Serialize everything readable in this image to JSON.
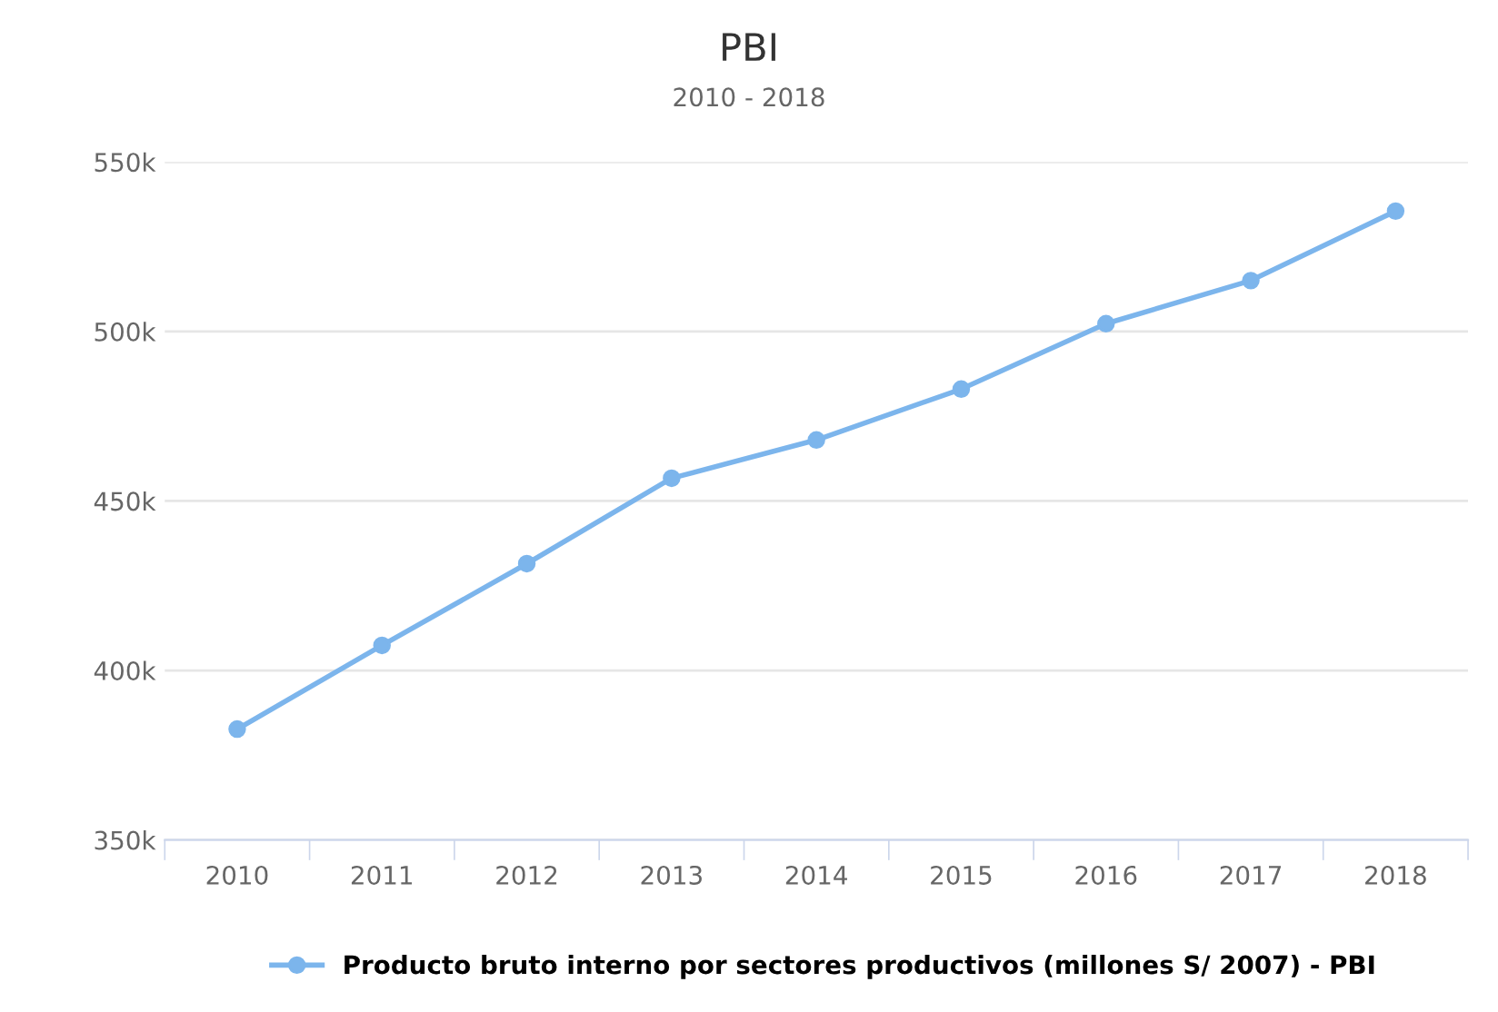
{
  "chart_data": {
    "type": "line",
    "title": "PBI",
    "subtitle": "2010 - 2018",
    "categories": [
      "2010",
      "2011",
      "2012",
      "2013",
      "2014",
      "2015",
      "2016",
      "2017",
      "2018"
    ],
    "series": [
      {
        "name": "Producto bruto interno por sectores productivos (millones S/ 2007) - PBI",
        "color": "#7cb5ec",
        "values": [
          382700,
          407400,
          431500,
          456700,
          468000,
          483000,
          502300,
          515000,
          535500
        ]
      }
    ],
    "ylim": [
      350000,
      550000
    ],
    "yticks": [
      {
        "value": 350000,
        "label": "350k"
      },
      {
        "value": 400000,
        "label": "400k"
      },
      {
        "value": 450000,
        "label": "450k"
      },
      {
        "value": 500000,
        "label": "500k"
      },
      {
        "value": 550000,
        "label": "550k"
      }
    ],
    "grid": "y",
    "legend": "bottom",
    "marker": "circle",
    "line_style": "solid"
  }
}
